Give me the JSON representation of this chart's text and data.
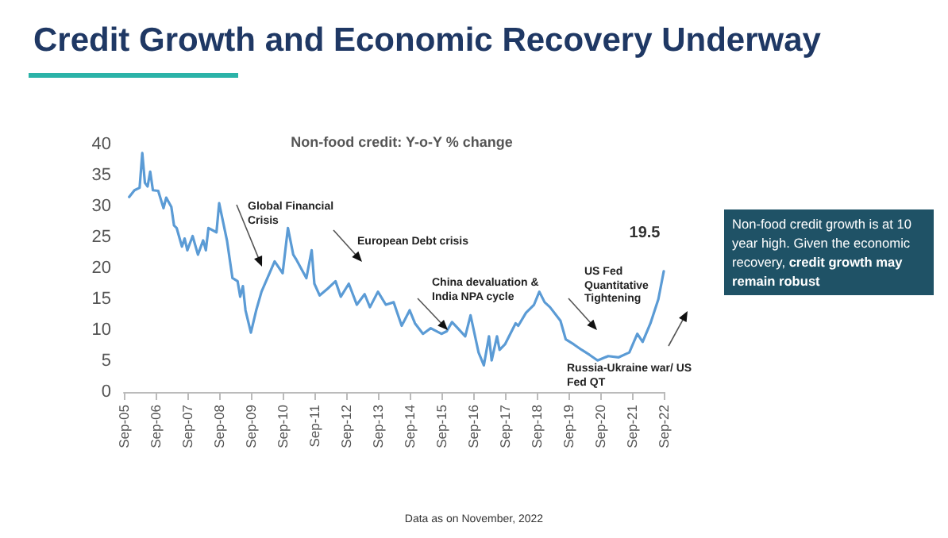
{
  "chart_data": {
    "type": "line",
    "title": "Credit Growth and Economic Recovery Underway",
    "subtitle": "Non-food credit: Y-o-Y % change",
    "x": [
      "2005-11",
      "2006-01",
      "2006-03",
      "2006-04",
      "2006-05",
      "2006-06",
      "2006-07",
      "2006-08",
      "2006-10",
      "2006-12",
      "2007-01",
      "2007-03",
      "2007-04",
      "2007-05",
      "2007-07",
      "2007-08",
      "2007-09",
      "2007-11",
      "2008-01",
      "2008-03",
      "2008-04",
      "2008-05",
      "2008-08",
      "2008-09",
      "2008-12",
      "2009-02",
      "2009-04",
      "2009-05",
      "2009-06",
      "2009-07",
      "2009-09",
      "2009-11",
      "2010-01",
      "2010-06",
      "2010-09",
      "2010-11",
      "2011-01",
      "2011-02",
      "2011-05",
      "2011-06",
      "2011-08",
      "2011-09",
      "2011-11",
      "2012-02",
      "2012-05",
      "2012-07",
      "2012-10",
      "2013-01",
      "2013-04",
      "2013-06",
      "2013-09",
      "2013-12",
      "2014-03",
      "2014-06",
      "2014-09",
      "2014-11",
      "2015-02",
      "2015-05",
      "2015-09",
      "2015-11",
      "2016-01",
      "2016-03",
      "2016-06",
      "2016-08",
      "2016-11",
      "2017-01",
      "2017-03",
      "2017-04",
      "2017-06",
      "2017-07",
      "2017-09",
      "2018-01",
      "2018-02",
      "2018-05",
      "2018-08",
      "2018-10",
      "2018-12",
      "2019-02",
      "2019-06",
      "2019-08",
      "2019-11",
      "2020-02",
      "2020-05",
      "2020-08",
      "2020-12",
      "2021-04",
      "2021-08",
      "2021-11",
      "2022-01",
      "2022-04",
      "2022-07",
      "2022-09"
    ],
    "series": [
      {
        "color": "#5b9bd5",
        "values": [
          31.5,
          32.6,
          33,
          38.6,
          33.8,
          33.2,
          35.6,
          32.6,
          32.5,
          29.7,
          31.4,
          29.9,
          26.9,
          26.5,
          23.5,
          24.8,
          22.9,
          25.2,
          22.2,
          24.5,
          22.9,
          26.5,
          25.8,
          30.5,
          24.4,
          18.4,
          17.9,
          15.4,
          17.1,
          13.2,
          9.6,
          13.2,
          16.2,
          21.1,
          19.2,
          26.5,
          22.2,
          21.5,
          19.2,
          18.4,
          22.9,
          17.5,
          15.6,
          16.7,
          17.9,
          15.4,
          17.5,
          14.1,
          15.8,
          13.7,
          16.2,
          14.1,
          14.5,
          10.7,
          13.2,
          11.1,
          9.4,
          10.3,
          9.4,
          9.8,
          11.3,
          10.4,
          9.0,
          12.4,
          6.4,
          4.3,
          9.0,
          5.1,
          9.0,
          6.8,
          7.7,
          11.1,
          10.7,
          12.8,
          14.1,
          16.2,
          14.5,
          13.7,
          11.5,
          8.5,
          7.7,
          6.8,
          6.0,
          5.1,
          5.8,
          5.6,
          6.4,
          9.4,
          8.1,
          11.1,
          15.0,
          19.5
        ],
        "value_labels": [
          null,
          null,
          null,
          null,
          null,
          null,
          null,
          null,
          null,
          null,
          null,
          null,
          null,
          null,
          null,
          null,
          null,
          null,
          null,
          null,
          null,
          null,
          null,
          null,
          null,
          null,
          null,
          null,
          null,
          null,
          null,
          null,
          null,
          null,
          null,
          null,
          null,
          null,
          null,
          null,
          null,
          null,
          null,
          null,
          null,
          null,
          null,
          null,
          null,
          null,
          null,
          null,
          null,
          null,
          null,
          null,
          null,
          null,
          null,
          null,
          null,
          null,
          null,
          null,
          null,
          null,
          null,
          null,
          null,
          null,
          null,
          null,
          null,
          null,
          null,
          null,
          null,
          null,
          null,
          null,
          null,
          null,
          null,
          null,
          null,
          null,
          null,
          null,
          null,
          null,
          null,
          "19.5"
        ]
      }
    ],
    "xlim": [
      "2005-09",
      "2022-09"
    ],
    "xticks": [
      {
        "value": "2005-09",
        "label": "Sep-05"
      },
      {
        "value": "2006-09",
        "label": "Sep-06"
      },
      {
        "value": "2007-09",
        "label": "Sep-07"
      },
      {
        "value": "2008-09",
        "label": "Sep-08"
      },
      {
        "value": "2009-09",
        "label": "Sep-09"
      },
      {
        "value": "2010-09",
        "label": "Sep-10"
      },
      {
        "value": "2011-09",
        "label": "Sep-11"
      },
      {
        "value": "2012-09",
        "label": "Sep-12"
      },
      {
        "value": "2013-09",
        "label": "Sep-13"
      },
      {
        "value": "2014-09",
        "label": "Sep-14"
      },
      {
        "value": "2015-09",
        "label": "Sep-15"
      },
      {
        "value": "2016-09",
        "label": "Sep-16"
      },
      {
        "value": "2017-09",
        "label": "Sep-17"
      },
      {
        "value": "2018-09",
        "label": "Sep-18"
      },
      {
        "value": "2019-09",
        "label": "Sep-19"
      },
      {
        "value": "2020-09",
        "label": "Sep-20"
      },
      {
        "value": "2021-09",
        "label": "Sep-21"
      },
      {
        "value": "2022-09",
        "label": "Sep-22"
      }
    ],
    "ylim": [
      0,
      40
    ],
    "yticks": [
      0,
      5,
      10,
      15,
      20,
      25,
      30,
      35,
      40
    ],
    "marker": "none",
    "line_style": "solid",
    "grid": false,
    "annotations": [
      "Global Financial Crisis",
      "European Debt crisis",
      "China devaluation & India NPA cycle",
      "US Fed Quantitative Tightening",
      "Russia-Ukraine war/ US Fed QT",
      "Non-food credit growth is at 10 year high. Given the economic recovery,",
      "credit growth may remain robust",
      "Data as on November, 2022"
    ]
  }
}
